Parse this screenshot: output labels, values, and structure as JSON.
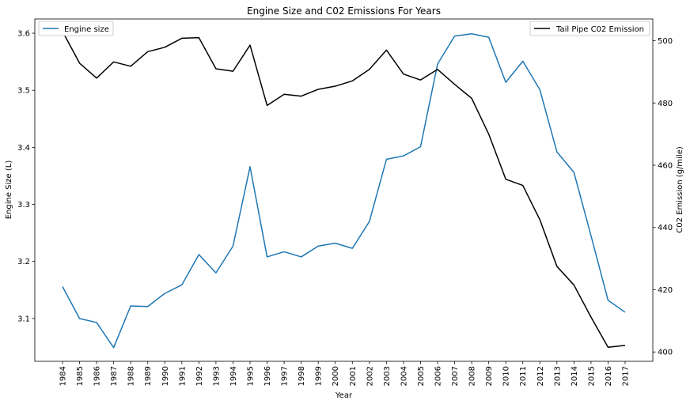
{
  "chart_data": {
    "type": "line",
    "title": "Engine Size and C02 Emissions For Years",
    "xlabel": "Year",
    "ylabel_left": "Engine Size (L)",
    "ylabel_right": "C02 Emission (g/mile)",
    "x": [
      "1984",
      "1985",
      "1986",
      "1987",
      "1988",
      "1989",
      "1990",
      "1991",
      "1992",
      "1993",
      "1994",
      "1995",
      "1996",
      "1997",
      "1998",
      "1999",
      "2000",
      "2001",
      "2002",
      "2003",
      "2004",
      "2005",
      "2006",
      "2007",
      "2008",
      "2009",
      "2010",
      "2011",
      "2012",
      "2013",
      "2014",
      "2015",
      "2016",
      "2017"
    ],
    "ylim_left": [
      3.025,
      3.625
    ],
    "ylim_right": [
      397,
      507
    ],
    "yticks_left": [
      "3.1",
      "3.2",
      "3.3",
      "3.4",
      "3.5",
      "3.6"
    ],
    "yticks_right": [
      "400",
      "420",
      "440",
      "460",
      "480",
      "500"
    ],
    "grid": false,
    "series": [
      {
        "name": "Engine size",
        "axis": "left",
        "color": "#1f77b4",
        "legend_position": "top-left",
        "values": [
          3.156,
          3.1,
          3.093,
          3.049,
          3.122,
          3.121,
          3.144,
          3.159,
          3.212,
          3.18,
          3.227,
          3.366,
          3.208,
          3.217,
          3.208,
          3.227,
          3.232,
          3.223,
          3.27,
          3.379,
          3.385,
          3.401,
          3.546,
          3.595,
          3.599,
          3.593,
          3.514,
          3.551,
          3.501,
          3.392,
          3.356,
          3.245,
          3.132,
          3.111
        ]
      },
      {
        "name": "Tail Pipe C02 Emission",
        "axis": "right",
        "color": "#000000",
        "legend_position": "top-right",
        "values": [
          503.0,
          492.8,
          488.0,
          493.2,
          491.8,
          496.5,
          497.9,
          500.8,
          501.0,
          491.0,
          490.2,
          498.6,
          479.2,
          482.8,
          482.2,
          484.4,
          485.4,
          487.1,
          490.8,
          497.0,
          489.3,
          487.4,
          490.8,
          486.0,
          481.5,
          470.0,
          455.5,
          453.5,
          442.5,
          427.5,
          421.5,
          411.2,
          401.5,
          402.1
        ]
      }
    ]
  }
}
